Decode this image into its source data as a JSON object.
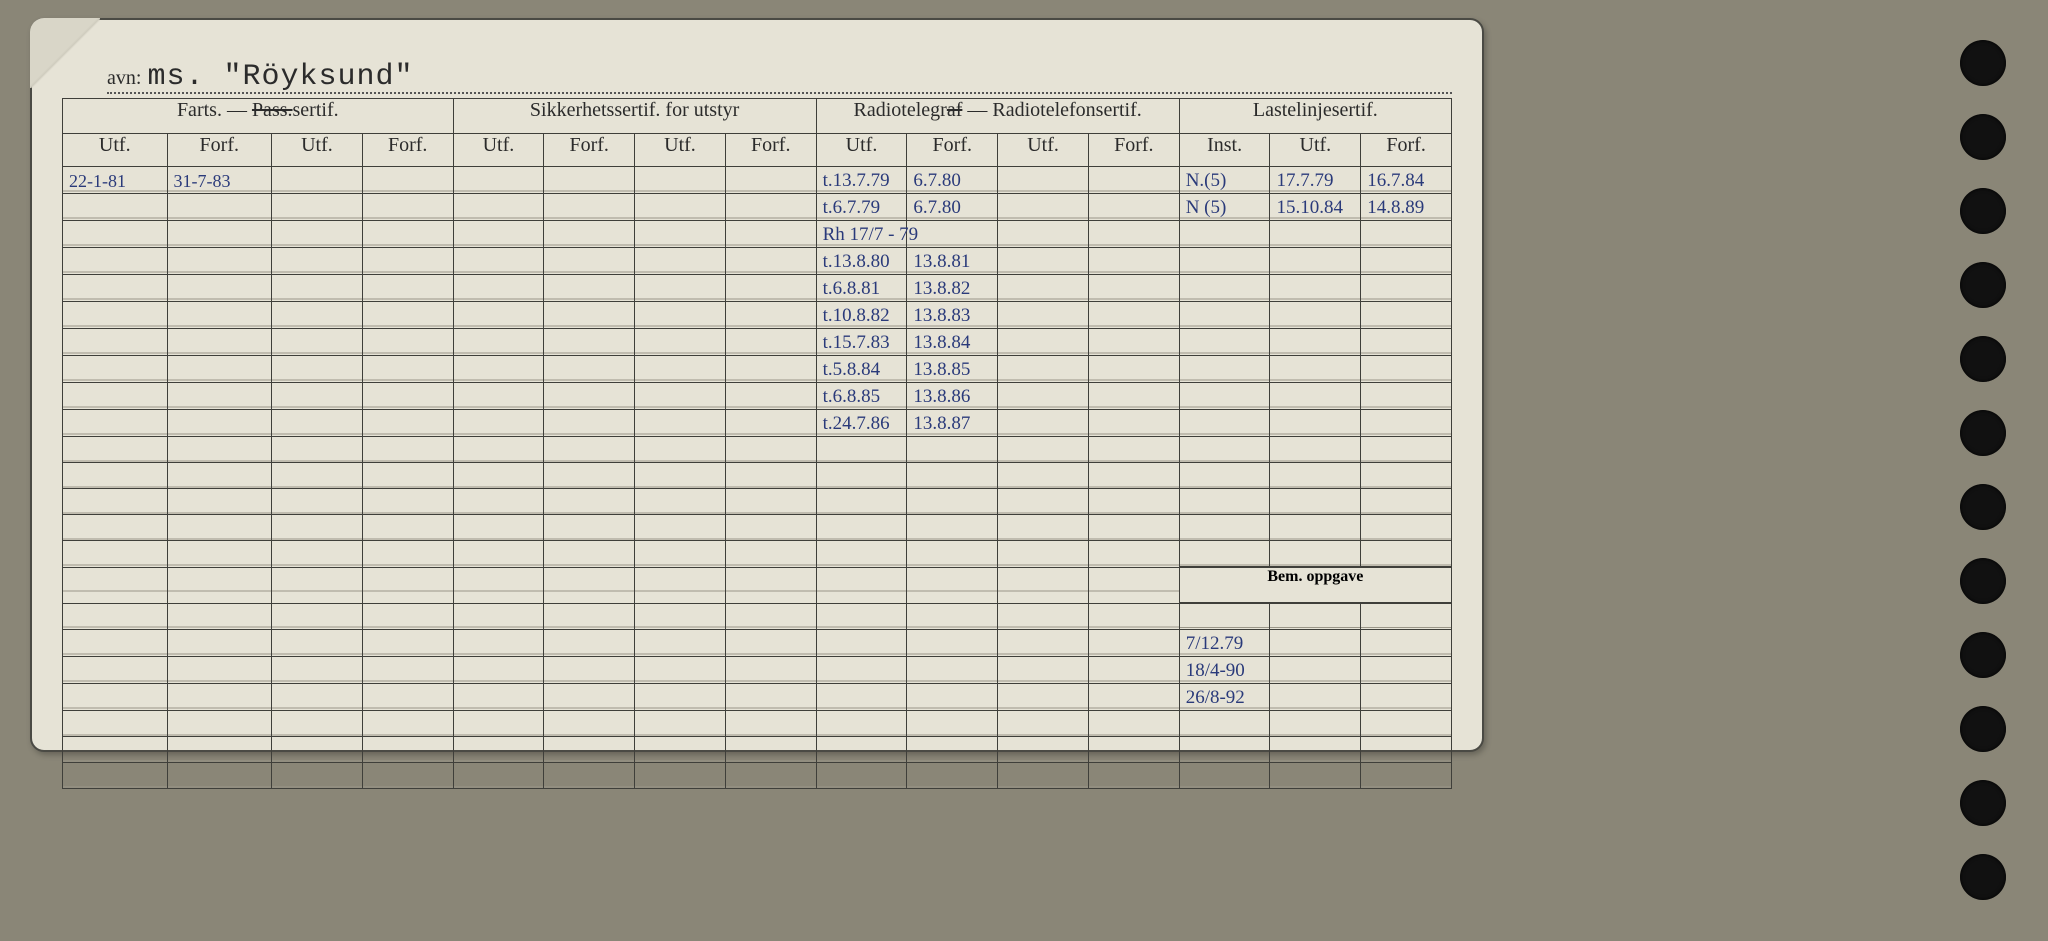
{
  "header": {
    "avn_label": "avn:",
    "name": "ms. \"Röyksund\""
  },
  "sections": {
    "farts": {
      "title": "Farts. — ",
      "strike": "Pass.",
      "title2": "sertif.",
      "sub": [
        "Utf.",
        "Forf.",
        "Utf.",
        "Forf."
      ]
    },
    "sikk": {
      "title": "Sikkerhetssertif. for utstyr",
      "sub": [
        "Utf.",
        "Forf.",
        "Utf.",
        "Forf."
      ]
    },
    "radio": {
      "title": "Radiotelegraf — Radiotelefonsertif.",
      "strike_part": "af",
      "sub": [
        "Utf.",
        "Forf.",
        "Utf.",
        "Forf."
      ]
    },
    "laste": {
      "title": "Lastelinjesertif.",
      "sub": [
        "Inst.",
        "Utf.",
        "Forf."
      ]
    }
  },
  "bem": {
    "label": "Bem. oppgave"
  },
  "farts_rows": [
    {
      "utf": "22-1-81",
      "forf": "31-7-83"
    }
  ],
  "radio_rows": [
    {
      "utf": "t.13.7.79",
      "forf": "6.7.80"
    },
    {
      "utf": "t.6.7.79",
      "forf": "6.7.80"
    },
    {
      "utf": "Rh 17/7 - 79",
      "forf": ""
    },
    {
      "utf": "t.13.8.80",
      "forf": "13.8.81"
    },
    {
      "utf": "t.6.8.81",
      "forf": "13.8.82"
    },
    {
      "utf": "t.10.8.82",
      "forf": "13.8.83"
    },
    {
      "utf": "t.15.7.83",
      "forf": "13.8.84"
    },
    {
      "utf": "t.5.8.84",
      "forf": "13.8.85"
    },
    {
      "utf": "t.6.8.85",
      "forf": "13.8.86"
    },
    {
      "utf": "t.24.7.86",
      "forf": "13.8.87"
    }
  ],
  "laste_rows": [
    {
      "inst": "N.(5)",
      "utf": "17.7.79",
      "forf": "16.7.84"
    },
    {
      "inst": "N (5)",
      "utf": "15.10.84",
      "forf": "14.8.89"
    }
  ],
  "bem_rows": [
    "7/12.79",
    "18/4-90",
    "26/8-92"
  ],
  "colors": {
    "paper": "#e6e3d6",
    "ink": "#2b2b2b",
    "pen": "#2a3a7a",
    "border": "#3f3f3a",
    "bg": "#8a8677"
  }
}
